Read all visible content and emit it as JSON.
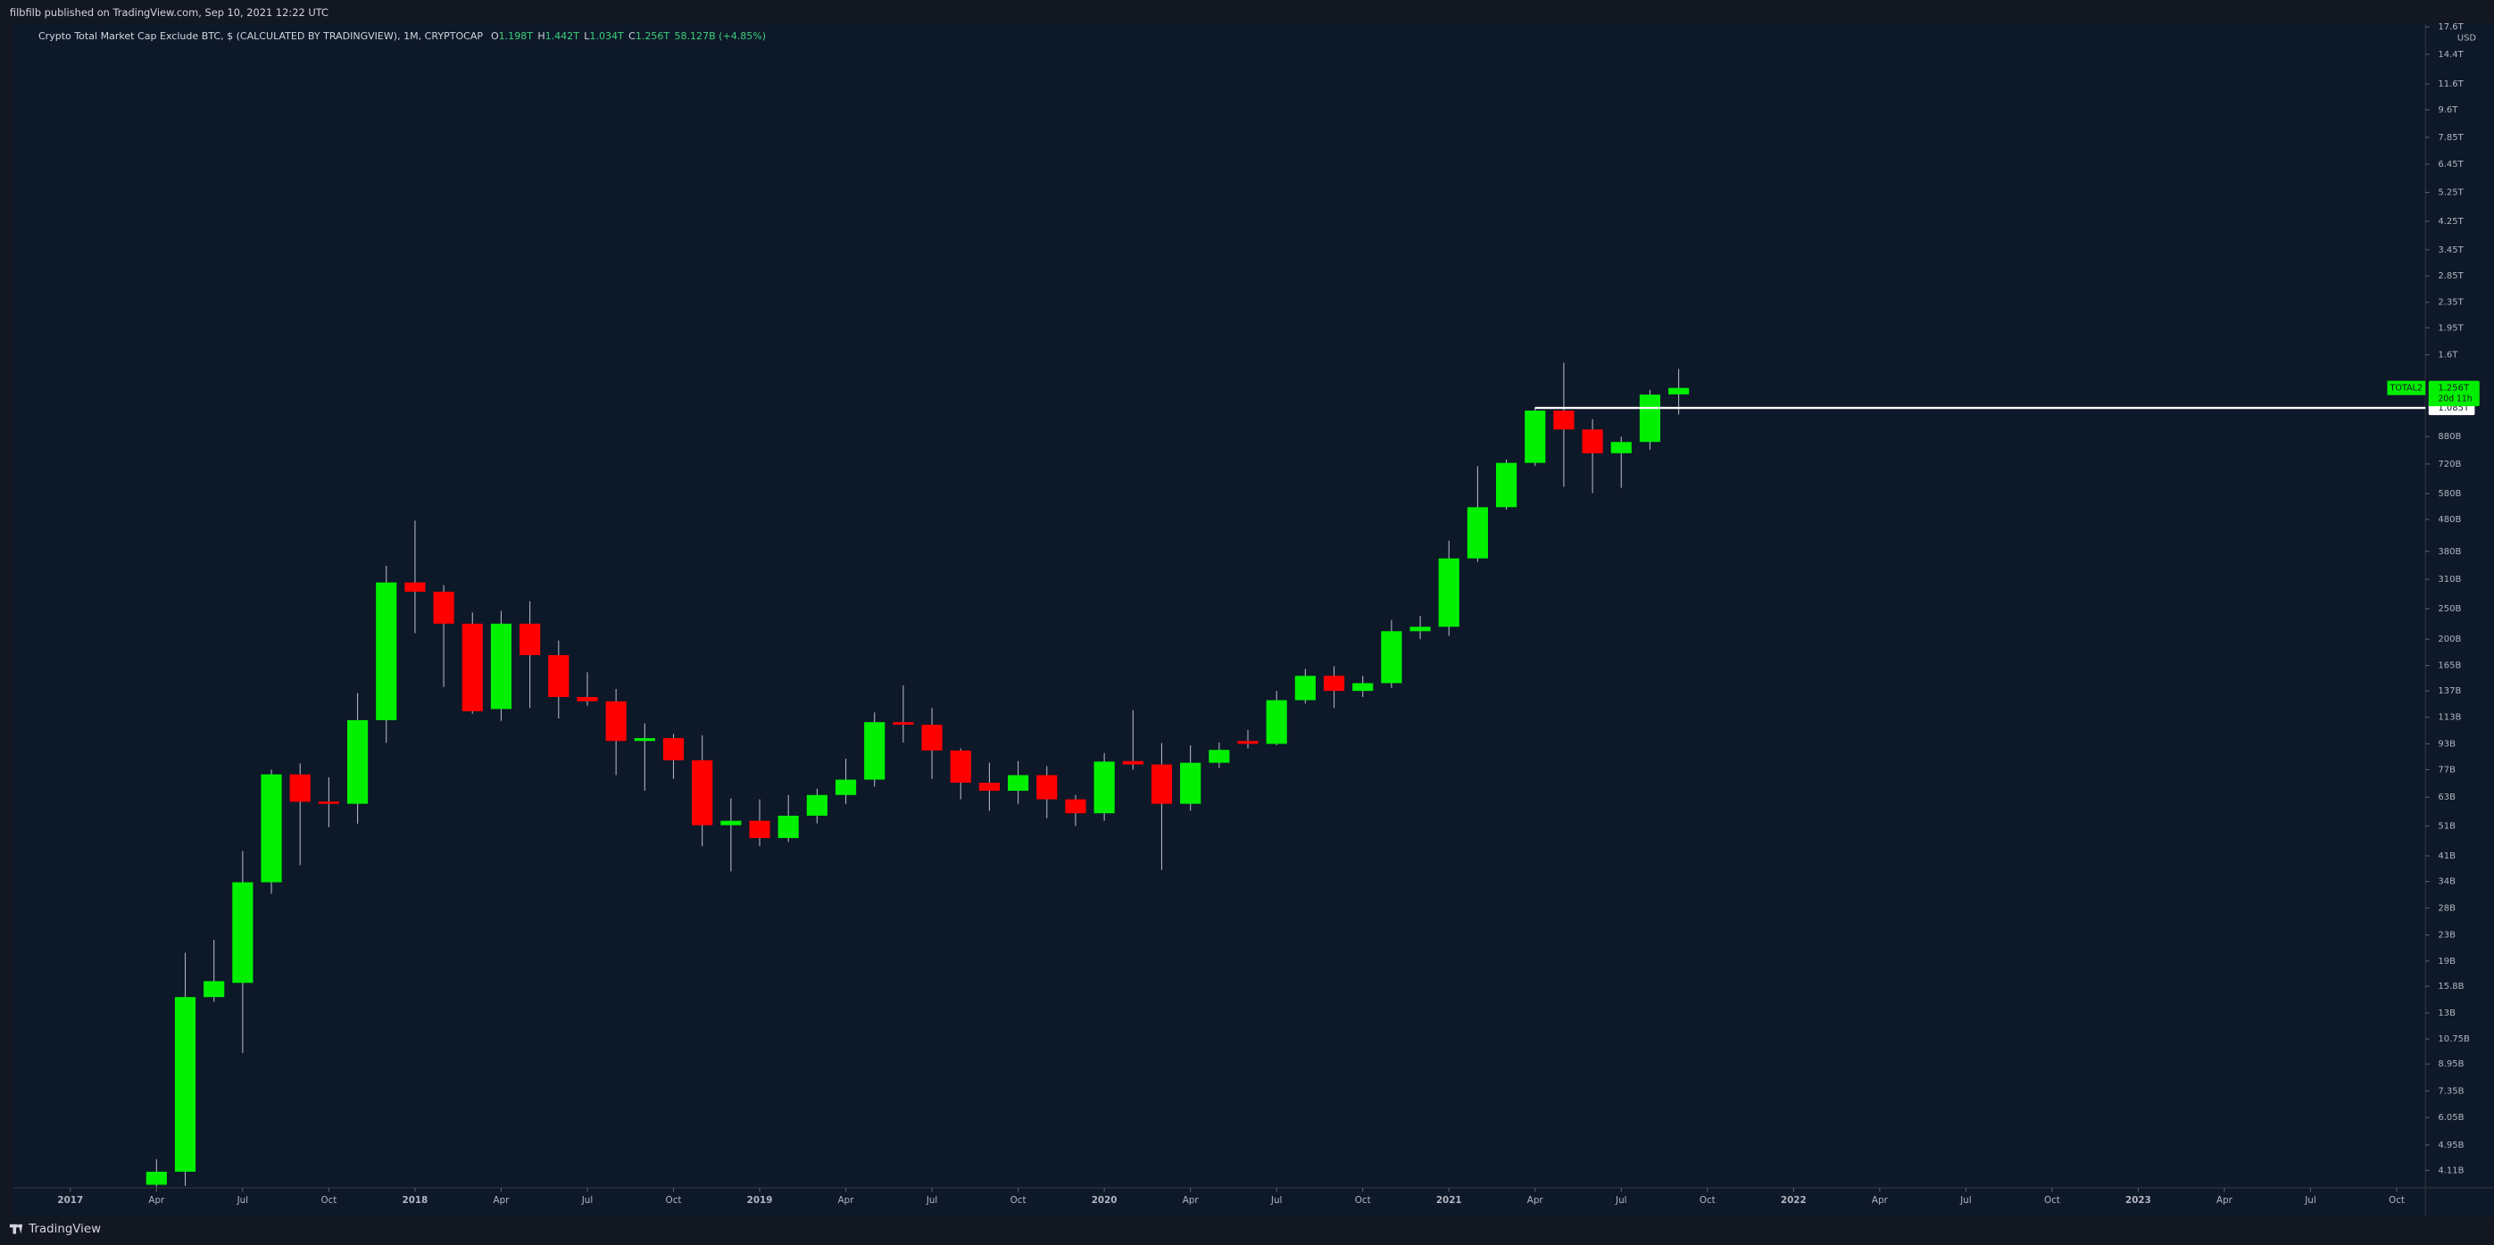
{
  "header": {
    "published": "filbfilb published on TradingView.com, Sep 10, 2021 12:22 UTC"
  },
  "footer": {
    "brand": "TradingView"
  },
  "chart_data": {
    "type": "candlestick",
    "title": "Crypto Total Market Cap Exclude BTC, $ (CALCULATED BY TRADINGVIEW), 1M, CRYPTOCAP",
    "ohlc_legend": [
      {
        "key": "O",
        "text": "1.198T"
      },
      {
        "key": "H",
        "text": "1.442T"
      },
      {
        "key": "L",
        "text": "1.034T"
      },
      {
        "key": "C",
        "text": "1.256T"
      }
    ],
    "change": "58.127B (+4.85%)",
    "x": [
      "2017-04",
      "2017-05",
      "2017-06",
      "2017-07",
      "2017-08",
      "2017-09",
      "2017-10",
      "2017-11",
      "2017-12",
      "2018-01",
      "2018-02",
      "2018-03",
      "2018-04",
      "2018-05",
      "2018-06",
      "2018-07",
      "2018-08",
      "2018-09",
      "2018-10",
      "2018-11",
      "2018-12",
      "2019-01",
      "2019-02",
      "2019-03",
      "2019-04",
      "2019-05",
      "2019-06",
      "2019-07",
      "2019-08",
      "2019-09",
      "2019-10",
      "2019-11",
      "2019-12",
      "2020-01",
      "2020-02",
      "2020-03",
      "2020-04",
      "2020-05",
      "2020-06",
      "2020-07",
      "2020-08",
      "2020-09",
      "2020-10",
      "2020-11",
      "2020-12",
      "2021-01",
      "2021-02",
      "2021-03",
      "2021-04",
      "2021-05",
      "2021-06",
      "2021-07",
      "2021-08",
      "2021-09"
    ],
    "open": [
      3700000000.0,
      4070000000.0,
      14600000000.0,
      16200000000.0,
      33800000000.0,
      74400000000.0,
      61000000000.0,
      60000000000.0,
      110600000000.0,
      302800000000.0,
      283000000000.0,
      224000000000.0,
      120000000000.0,
      224000000000.0,
      178000000000.0,
      131000000000.0,
      127000000000.0,
      95000000000.0,
      97000000000.0,
      82500000000.0,
      51300000000.0,
      53000000000.0,
      46700000000.0,
      55000000000.0,
      64000000000.0,
      71600000000.0,
      109000000000.0,
      107000000000.0,
      88600000000.0,
      70000000000.0,
      66000000000.0,
      74000000000.0,
      62000000000.0,
      56000000000.0,
      82000000000.0,
      80000000000.0,
      60000000000.0,
      81000000000.0,
      95000000000.0,
      93000000000.0,
      128000000000.0,
      153000000000.0,
      137000000000.0,
      145000000000.0,
      212000000000.0,
      219000000000.0,
      361000000000.0,
      525000000000.0,
      726000000000.0,
      1064000000000.0,
      927000000000.0,
      779000000000.0,
      846000000000.0,
      1198000000000.0
    ],
    "high": [
      4460000000.0,
      20200000000.0,
      22200000000.0,
      42500000000.0,
      77000000000.0,
      80600000000.0,
      72800000000.0,
      134800000000.0,
      342000000000.0,
      476000000000.0,
      297000000000.0,
      243000000000.0,
      246000000000.0,
      264000000000.0,
      198000000000.0,
      157000000000.0,
      139000000000.0,
      108000000000.0,
      100000000000.0,
      99000000000.0,
      62400000000.0,
      62000000000.0,
      64000000000.0,
      67000000000.0,
      83400000000.0,
      117000000000.0,
      142600000000.0,
      121000000000.0,
      90000000000.0,
      81000000000.0,
      82000000000.0,
      79000000000.0,
      64000000000.0,
      87000000000.0,
      119000000000.0,
      93500000000.0,
      92000000000.0,
      94000000000.0,
      103000000000.0,
      137000000000.0,
      161000000000.0,
      164000000000.0,
      153000000000.0,
      230000000000.0,
      237000000000.0,
      411000000000.0,
      709000000000.0,
      744000000000.0,
      1090000000000.0,
      1510000000000.0,
      1000000000000.0,
      880000000000.0,
      1238000000000.0,
      1442000000000.0
    ],
    "low": [
      3650000000.0,
      3670000000.0,
      14100000000.0,
      9700000000.0,
      31100000000.0,
      38300000000.0,
      50600000000.0,
      51900000000.0,
      93700000000.0,
      209000000000.0,
      141000000000.0,
      116000000000.0,
      110000000000.0,
      121000000000.0,
      112000000000.0,
      123000000000.0,
      74000000000.0,
      66000000000.0,
      72000000000.0,
      44000000000.0,
      36600000000.0,
      44000000000.0,
      45400000000.0,
      52000000000.0,
      60000000000.0,
      68000000000.0,
      94000000000.0,
      72000000000.0,
      62000000000.0,
      57000000000.0,
      60000000000.0,
      54000000000.0,
      51000000000.0,
      53000000000.0,
      77000000000.0,
      37000000000.0,
      57000000000.0,
      78000000000.0,
      90000000000.0,
      92000000000.0,
      125000000000.0,
      121000000000.0,
      131000000000.0,
      140000000000.0,
      200000000000.0,
      205000000000.0,
      352000000000.0,
      516000000000.0,
      710000000000.0,
      610000000000.0,
      582000000000.0,
      605000000000.0,
      800000000000.0,
      1034000000000.0
    ],
    "close": [
      4070000000.0,
      14600000000.0,
      16400000000.0,
      33800000000.0,
      74400000000.0,
      60900000000.0,
      60000000000.0,
      110600000000.0,
      302800000000.0,
      283000000000.0,
      224000000000.0,
      118000000000.0,
      224000000000.0,
      178000000000.0,
      131000000000.0,
      127000000000.0,
      95000000000.0,
      97000000000.0,
      82500000000.0,
      51300000000.0,
      53000000000.0,
      46700000000.0,
      55000000000.0,
      64000000000.0,
      71600000000.0,
      109000000000.0,
      107000000000.0,
      88600000000.0,
      70000000000.0,
      66000000000.0,
      74000000000.0,
      62000000000.0,
      56000000000.0,
      81700000000.0,
      80000000000.0,
      60000000000.0,
      81000000000.0,
      89000000000.0,
      93000000000.0,
      128000000000.0,
      153000000000.0,
      137000000000.0,
      145000000000.0,
      212000000000.0,
      219000000000.0,
      361000000000.0,
      525000000000.0,
      726000000000.0,
      1064000000000.0,
      927000000000.0,
      779000000000.0,
      846000000000.0,
      1196000000000.0,
      1256000000000.0
    ],
    "up_color": "#00f000",
    "down_color": "#ff0000",
    "wick_color": "#b2b5be",
    "log_scale": true,
    "grid": false,
    "y_unit": "USD",
    "xlim": [
      "2016-11",
      "2023-11"
    ],
    "ylim": [
      3620000000.0,
      18000000000000.0
    ],
    "xticks": [
      {
        "value": "2017-01",
        "label": "2017"
      },
      {
        "value": "2017-04",
        "label": "Apr"
      },
      {
        "value": "2017-07",
        "label": "Jul"
      },
      {
        "value": "2017-10",
        "label": "Oct"
      },
      {
        "value": "2018-01",
        "label": "2018"
      },
      {
        "value": "2018-04",
        "label": "Apr"
      },
      {
        "value": "2018-07",
        "label": "Jul"
      },
      {
        "value": "2018-10",
        "label": "Oct"
      },
      {
        "value": "2019-01",
        "label": "2019"
      },
      {
        "value": "2019-04",
        "label": "Apr"
      },
      {
        "value": "2019-07",
        "label": "Jul"
      },
      {
        "value": "2019-10",
        "label": "Oct"
      },
      {
        "value": "2020-01",
        "label": "2020"
      },
      {
        "value": "2020-04",
        "label": "Apr"
      },
      {
        "value": "2020-07",
        "label": "Jul"
      },
      {
        "value": "2020-10",
        "label": "Oct"
      },
      {
        "value": "2021-01",
        "label": "2021"
      },
      {
        "value": "2021-04",
        "label": "Apr"
      },
      {
        "value": "2021-07",
        "label": "Jul"
      },
      {
        "value": "2021-10",
        "label": "Oct"
      },
      {
        "value": "2022-01",
        "label": "2022"
      },
      {
        "value": "2022-04",
        "label": "Apr"
      },
      {
        "value": "2022-07",
        "label": "Jul"
      },
      {
        "value": "2022-10",
        "label": "Oct"
      },
      {
        "value": "2023-01",
        "label": "2023"
      },
      {
        "value": "2023-04",
        "label": "Apr"
      },
      {
        "value": "2023-07",
        "label": "Jul"
      },
      {
        "value": "2023-10",
        "label": "Oct"
      }
    ],
    "yticks": [
      {
        "value": 17600000000000.0,
        "label": "17.6T"
      },
      {
        "value": 14400000000000.0,
        "label": "14.4T"
      },
      {
        "value": 11600000000000.0,
        "label": "11.6T"
      },
      {
        "value": 9600000000000.0,
        "label": "9.6T"
      },
      {
        "value": 7850000000000.0,
        "label": "7.85T"
      },
      {
        "value": 6450000000000.0,
        "label": "6.45T"
      },
      {
        "value": 5250000000000.0,
        "label": "5.25T"
      },
      {
        "value": 4250000000000.0,
        "label": "4.25T"
      },
      {
        "value": 3450000000000.0,
        "label": "3.45T"
      },
      {
        "value": 2850000000000.0,
        "label": "2.85T"
      },
      {
        "value": 2350000000000.0,
        "label": "2.35T"
      },
      {
        "value": 1950000000000.0,
        "label": "1.95T"
      },
      {
        "value": 1600000000000.0,
        "label": "1.6T"
      },
      {
        "value": 880000000000.0,
        "label": "880B"
      },
      {
        "value": 720000000000.0,
        "label": "720B"
      },
      {
        "value": 580000000000.0,
        "label": "580B"
      },
      {
        "value": 480000000000.0,
        "label": "480B"
      },
      {
        "value": 380000000000.0,
        "label": "380B"
      },
      {
        "value": 310000000000.0,
        "label": "310B"
      },
      {
        "value": 250000000000.0,
        "label": "250B"
      },
      {
        "value": 200000000000.0,
        "label": "200B"
      },
      {
        "value": 165000000000.0,
        "label": "165B"
      },
      {
        "value": 137000000000.0,
        "label": "137B"
      },
      {
        "value": 113000000000.0,
        "label": "113B"
      },
      {
        "value": 93000000000.0,
        "label": "93B"
      },
      {
        "value": 77000000000.0,
        "label": "77B"
      },
      {
        "value": 63000000000.0,
        "label": "63B"
      },
      {
        "value": 51000000000.0,
        "label": "51B"
      },
      {
        "value": 41000000000.0,
        "label": "41B"
      },
      {
        "value": 34000000000.0,
        "label": "34B"
      },
      {
        "value": 28000000000.0,
        "label": "28B"
      },
      {
        "value": 23000000000.0,
        "label": "23B"
      },
      {
        "value": 19000000000.0,
        "label": "19B"
      },
      {
        "value": 15800000000.0,
        "label": "15.8B"
      },
      {
        "value": 13000000000.0,
        "label": "13B"
      },
      {
        "value": 10750000000.0,
        "label": "10.75B"
      },
      {
        "value": 8950000000.0,
        "label": "8.95B"
      },
      {
        "value": 7350000000.0,
        "label": "7.35B"
      },
      {
        "value": 6050000000.0,
        "label": "6.05B"
      },
      {
        "value": 4950000000.0,
        "label": "4.95B"
      },
      {
        "value": 4110000000.0,
        "label": "4.11B"
      }
    ],
    "hline": {
      "value": 1085000000000.0,
      "label": "1.085T",
      "from": "2021-04",
      "color": "#ffffff"
    },
    "last_price": {
      "symbol": "TOTAL2",
      "label": "1.256T",
      "countdown": "20d 11h",
      "color": "#00f000"
    }
  }
}
